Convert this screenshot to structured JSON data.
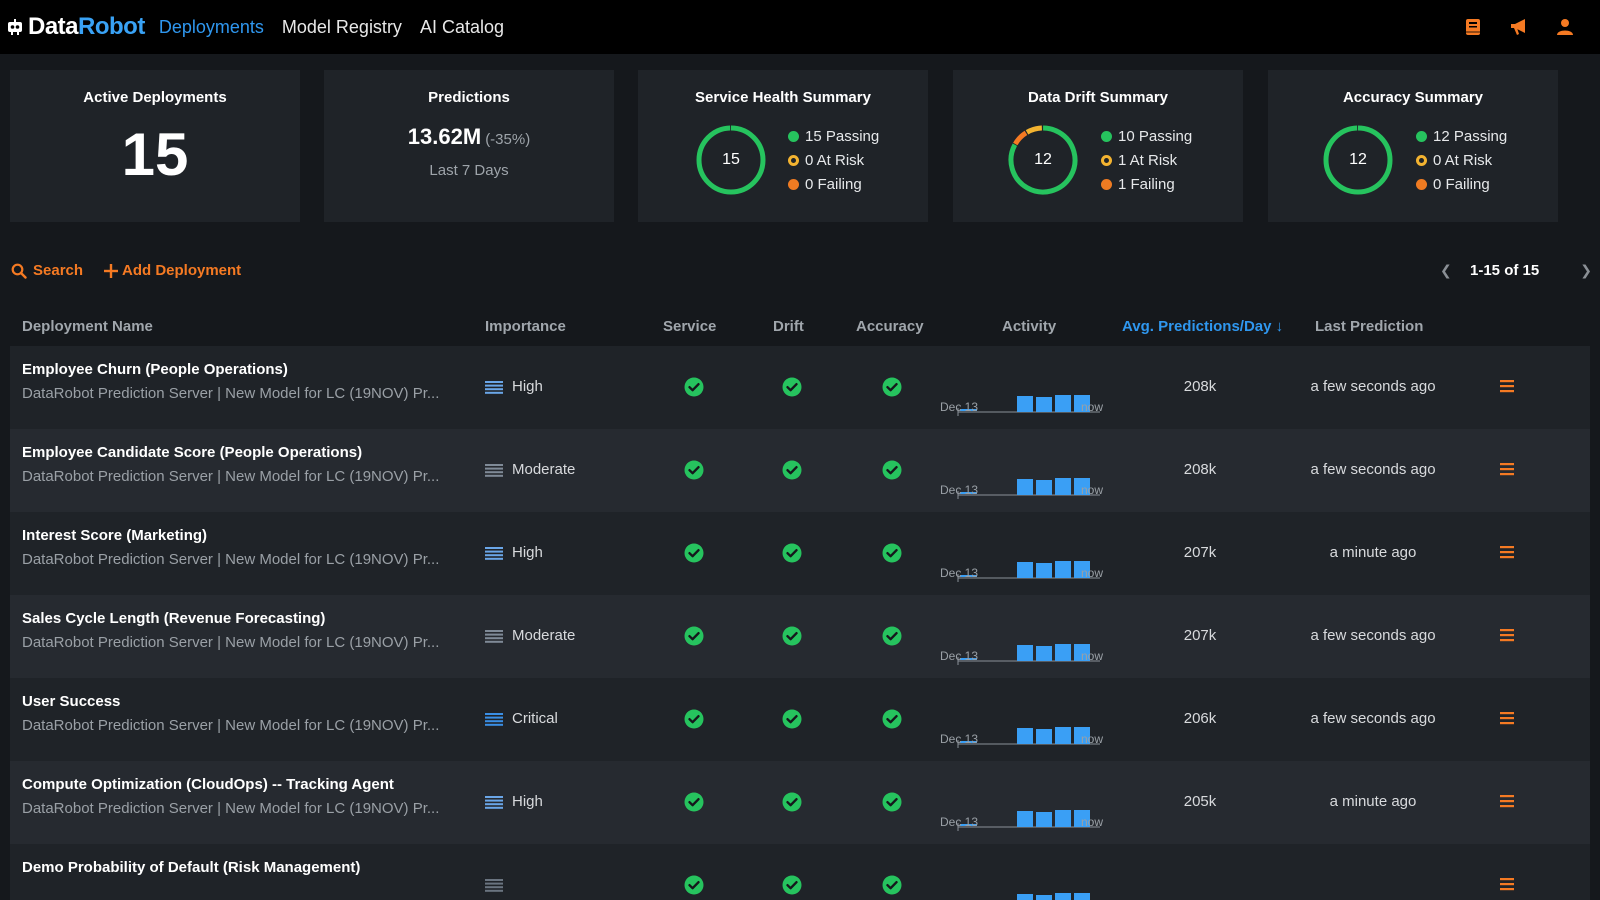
{
  "brand": {
    "data": "Data",
    "robot": "Robot"
  },
  "nav": {
    "items": [
      "Deployments",
      "Model Registry",
      "AI Catalog"
    ]
  },
  "top_icons": [
    "book-icon",
    "megaphone-icon",
    "user-icon"
  ],
  "colors": {
    "accent": "#2f97ef",
    "orange": "#f57a23",
    "green": "#26c35e",
    "yellow": "#f3b330",
    "blue_bar": "#3a9ff5"
  },
  "summary": {
    "active": {
      "title": "Active Deployments",
      "count": "15"
    },
    "predictions": {
      "title": "Predictions",
      "value": "13.62M",
      "change": "(-35%)",
      "period": "Last 7 Days"
    },
    "service": {
      "title": "Service Health Summary",
      "total": "15",
      "passing": "15 Passing",
      "at_risk": "0 At Risk",
      "failing": "0 Failing",
      "counts": [
        15,
        0,
        0
      ]
    },
    "drift": {
      "title": "Data Drift Summary",
      "total": "12",
      "passing": "10 Passing",
      "at_risk": "1 At Risk",
      "failing": "1 Failing",
      "counts": [
        10,
        1,
        1
      ]
    },
    "accuracy": {
      "title": "Accuracy Summary",
      "total": "12",
      "passing": "12 Passing",
      "at_risk": "0 At Risk",
      "failing": "0 Failing",
      "counts": [
        12,
        0,
        0
      ]
    }
  },
  "toolbar": {
    "search": "Search",
    "add": "Add Deployment",
    "pager": "1-15 of 15"
  },
  "columns": {
    "name": "Deployment Name",
    "importance": "Importance",
    "service": "Service",
    "drift": "Drift",
    "accuracy": "Accuracy",
    "activity": "Activity",
    "avg": "Avg. Predictions/Day",
    "last": "Last Prediction"
  },
  "activity_labels": {
    "start": "Dec 13",
    "end": "now"
  },
  "rows": [
    {
      "name": "Employee Churn (People Operations)",
      "sub": "DataRobot Prediction Server | New Model for LC (19NOV) Pr...",
      "importance": "High",
      "avg": "208k",
      "last": "a few seconds ago"
    },
    {
      "name": "Employee Candidate Score (People Operations)",
      "sub": "DataRobot Prediction Server | New Model for LC (19NOV) Pr...",
      "importance": "Moderate",
      "avg": "208k",
      "last": "a few seconds ago"
    },
    {
      "name": "Interest Score (Marketing)",
      "sub": "DataRobot Prediction Server | New Model for LC (19NOV) Pr...",
      "importance": "High",
      "avg": "207k",
      "last": "a minute ago"
    },
    {
      "name": "Sales Cycle Length (Revenue Forecasting)",
      "sub": "DataRobot Prediction Server | New Model for LC (19NOV) Pr...",
      "importance": "Moderate",
      "avg": "207k",
      "last": "a few seconds ago"
    },
    {
      "name": "User Success",
      "sub": "DataRobot Prediction Server | New Model for LC (19NOV) Pr...",
      "importance": "Critical",
      "avg": "206k",
      "last": "a few seconds ago"
    },
    {
      "name": "Compute Optimization (CloudOps) -- Tracking Agent",
      "sub": "DataRobot Prediction Server | New Model for LC (19NOV) Pr...",
      "importance": "High",
      "avg": "205k",
      "last": "a minute ago"
    },
    {
      "name": "Demo Probability of Default (Risk Management)",
      "sub": "",
      "importance": "",
      "avg": "",
      "last": ""
    }
  ]
}
